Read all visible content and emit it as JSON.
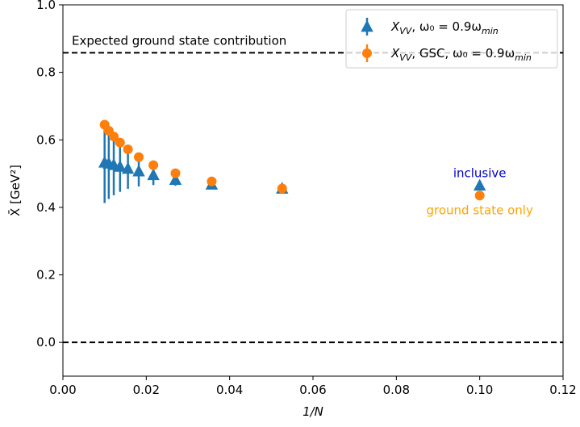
{
  "chart_data": {
    "type": "scatter",
    "title": "",
    "xlabel": "1/N",
    "ylabel": "X̄ [GeV²]",
    "xlim": [
      0.0,
      0.12
    ],
    "ylim": [
      -0.1,
      1.0
    ],
    "x_ticks": [
      "0.00",
      "0.02",
      "0.04",
      "0.06",
      "0.08",
      "0.10",
      "0.12"
    ],
    "y_ticks": [
      "0.0",
      "0.2",
      "0.4",
      "0.6",
      "0.8",
      "1.0"
    ],
    "grid": false,
    "legend_position": "top-right",
    "series": [
      {
        "name": "X_VV, ω₀ = 0.9ω_min",
        "legend_main": "X",
        "legend_sub": "VV",
        "legend_rest": ", ω₀ = 0.9ω",
        "legend_rest_sub": "min",
        "color": "#1f77b4",
        "marker": "triangle",
        "x": [
          0.01,
          0.011,
          0.0122,
          0.0137,
          0.0156,
          0.0182,
          0.0217,
          0.027,
          0.0357,
          0.0526,
          0.1
        ],
        "y": [
          0.533,
          0.53,
          0.526,
          0.521,
          0.515,
          0.507,
          0.496,
          0.482,
          0.468,
          0.456,
          0.465
        ],
        "yerr": [
          0.12,
          0.105,
          0.09,
          0.075,
          0.06,
          0.045,
          0.03,
          0.018,
          0.01,
          0.006,
          0.006
        ]
      },
      {
        "name": "X_VV, GSC, ω₀ = 0.9ω_min",
        "legend_main": "X",
        "legend_sub": "VV",
        "legend_rest": ", GSC, ω₀ = 0.9ω",
        "legend_rest_sub": "min",
        "color": "#ff7f0e",
        "marker": "circle",
        "x": [
          0.01,
          0.011,
          0.0122,
          0.0137,
          0.0156,
          0.0182,
          0.0217,
          0.027,
          0.0357,
          0.0526,
          0.1
        ],
        "y": [
          0.645,
          0.627,
          0.61,
          0.592,
          0.572,
          0.549,
          0.525,
          0.501,
          0.477,
          0.456,
          0.435
        ],
        "yerr": [
          0.012,
          0.01,
          0.009,
          0.008,
          0.007,
          0.006,
          0.005,
          0.004,
          0.003,
          0.003,
          0.003
        ]
      }
    ],
    "hlines": [
      {
        "y": 0.858,
        "label": "Expected ground state contribution"
      },
      {
        "y": 0.0,
        "label": ""
      }
    ],
    "annotations": [
      {
        "text": "inclusive",
        "x": 0.1,
        "y": 0.49,
        "color": "#0000cd"
      },
      {
        "text": "ground state only",
        "x": 0.1,
        "y": 0.38,
        "color": "#ffa500"
      }
    ]
  }
}
